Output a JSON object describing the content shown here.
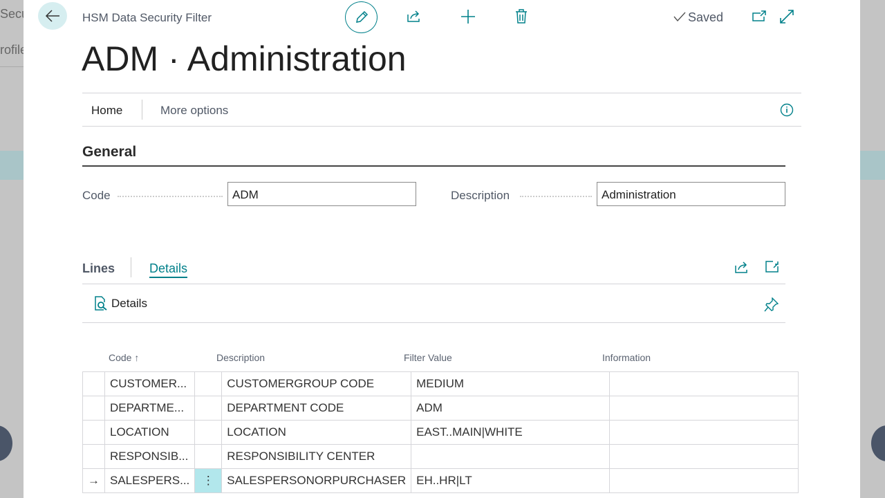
{
  "background": {
    "fragment_1": "Secu",
    "fragment_2": "rofile"
  },
  "header": {
    "breadcrumb": "HSM Data Security Filter",
    "title": "ADM · Administration",
    "status": "Saved"
  },
  "actionbar": {
    "tabs": [
      "Home",
      "More options"
    ]
  },
  "general": {
    "heading": "General",
    "code_label": "Code",
    "code_value": "ADM",
    "description_label": "Description",
    "description_value": "Administration"
  },
  "lines": {
    "heading": "Lines",
    "tab": "Details",
    "action": "Details",
    "columns": [
      "Code",
      "Description",
      "Filter Value",
      "Information"
    ],
    "rows": [
      {
        "code": "CUSTOMER...",
        "description": "CUSTOMERGROUP CODE",
        "filter": "MEDIUM",
        "info": ""
      },
      {
        "code": "DEPARTME...",
        "description": "DEPARTMENT CODE",
        "filter": "ADM",
        "info": ""
      },
      {
        "code": "LOCATION",
        "description": "LOCATION",
        "filter": "EAST..MAIN|WHITE",
        "info": ""
      },
      {
        "code": "RESPONSIB...",
        "description": "RESPONSIBILITY CENTER",
        "filter": "",
        "info": ""
      },
      {
        "code": "SALESPERS...",
        "description": "SALESPERSONORPURCHASER",
        "filter": "EH..HR|LT",
        "info": "",
        "selected": true
      }
    ]
  },
  "colors": {
    "accent": "#00808a",
    "selected_cell": "#b2e7ec"
  }
}
